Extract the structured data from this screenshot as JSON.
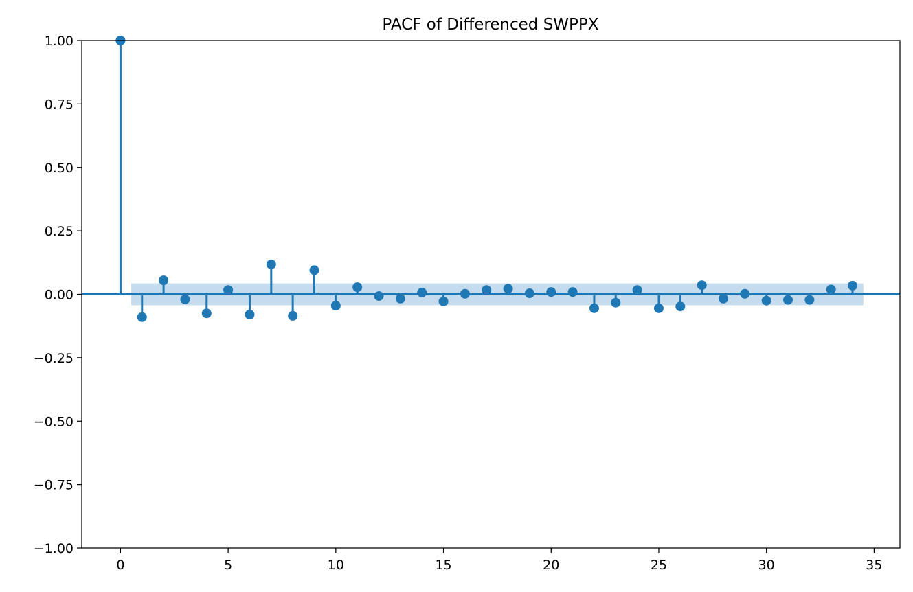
{
  "chart_data": {
    "type": "scatter",
    "subtype": "stem",
    "title": "PACF of Differenced SWPPX",
    "xlabel": "",
    "ylabel": "",
    "xlim": [
      -1.8,
      36.2
    ],
    "ylim": [
      -1.0,
      1.0
    ],
    "x_ticks": [
      0,
      5,
      10,
      15,
      20,
      25,
      30,
      35
    ],
    "x_tick_labels": [
      "0",
      "5",
      "10",
      "15",
      "20",
      "25",
      "30",
      "35"
    ],
    "y_ticks": [
      1.0,
      0.75,
      0.5,
      0.25,
      0.0,
      -0.25,
      -0.5,
      -0.75,
      -1.0
    ],
    "y_tick_labels": [
      "1.00",
      "0.75",
      "0.50",
      "0.25",
      "0.00",
      "−0.25",
      "−0.50",
      "−0.75",
      "−1.00"
    ],
    "grid": false,
    "colors": {
      "series": "#1f77b4",
      "confidence_band": "#c5dbee",
      "axes": "#000000"
    },
    "confidence_band": {
      "x_range": [
        0.5,
        34.5
      ],
      "lower": -0.043,
      "upper": 0.043
    },
    "lags": [
      0,
      1,
      2,
      3,
      4,
      5,
      6,
      7,
      8,
      9,
      10,
      11,
      12,
      13,
      14,
      15,
      16,
      17,
      18,
      19,
      20,
      21,
      22,
      23,
      24,
      25,
      26,
      27,
      28,
      29,
      30,
      31,
      32,
      33,
      34
    ],
    "values": [
      1.0,
      -0.09,
      0.055,
      -0.02,
      -0.075,
      0.017,
      -0.08,
      0.118,
      -0.085,
      0.095,
      -0.045,
      0.028,
      -0.007,
      -0.017,
      0.007,
      -0.028,
      0.002,
      0.017,
      0.022,
      0.004,
      0.009,
      0.009,
      -0.055,
      -0.033,
      0.017,
      -0.055,
      -0.048,
      0.036,
      -0.017,
      0.002,
      -0.025,
      -0.022,
      -0.022,
      0.019,
      0.034
    ]
  }
}
